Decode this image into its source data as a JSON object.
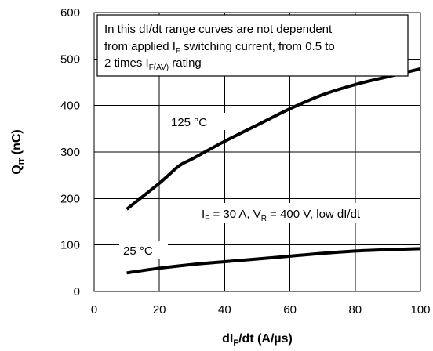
{
  "chart_data": {
    "type": "line",
    "x_axis": {
      "label_main": "dI",
      "label_sub": "F",
      "label_rest": "/dt (A/µs)",
      "range": [
        0,
        100
      ],
      "ticks": [
        0,
        20,
        40,
        60,
        80,
        100
      ],
      "tick_labels": [
        "0",
        "20",
        "40",
        "60",
        "80",
        "100"
      ]
    },
    "y_axis": {
      "label_main": "Q",
      "label_sub": "rr",
      "label_rest": " (nC)",
      "range": [
        0,
        600
      ],
      "ticks": [
        0,
        100,
        200,
        300,
        400,
        500,
        600
      ],
      "tick_labels": [
        "0",
        "100",
        "200",
        "300",
        "400",
        "500",
        "600"
      ]
    },
    "grid": true,
    "series": [
      {
        "name": "125 °C",
        "x": [
          10,
          20,
          26,
          30,
          40,
          50,
          60,
          70,
          80,
          90,
          100
        ],
        "y": [
          177,
          233,
          270,
          285,
          323,
          358,
          393,
          423,
          445,
          462,
          479
        ]
      },
      {
        "name": "25 °C",
        "x": [
          10,
          20,
          30,
          40,
          50,
          60,
          70,
          80,
          90,
          100
        ],
        "y": [
          40,
          50,
          58,
          64,
          70,
          76,
          82,
          87,
          90,
          92
        ]
      }
    ],
    "annotations": {
      "box_lines": [
        "In this dI/dt range curves are not dependent",
        {
          "pre": "from applied I",
          "sub": "F",
          "post": " switching current, from 0.5 to"
        },
        {
          "pre": "2 times I",
          "sub": "F(AV)",
          "post": " rating"
        }
      ],
      "condition": {
        "p1": "I",
        "s1": "F",
        "p2": " = 30 A, V",
        "s2": "R",
        "p3": " = 400 V, low dI/dt"
      }
    }
  }
}
